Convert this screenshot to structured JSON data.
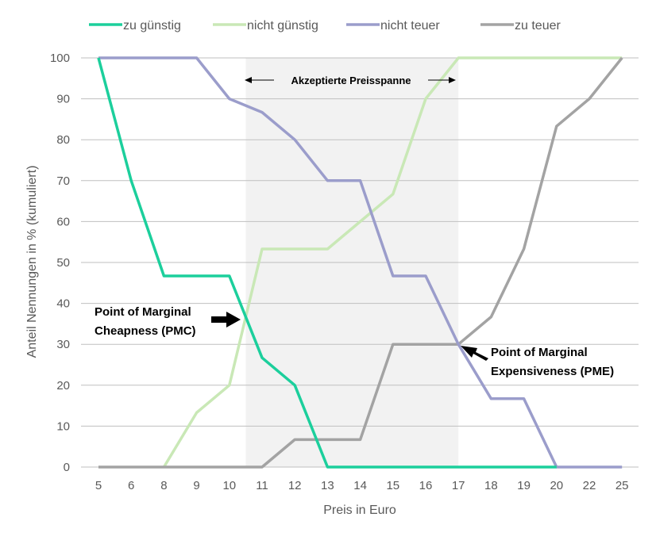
{
  "chart_data": {
    "type": "line",
    "categories": [
      "5",
      "6",
      "8",
      "9",
      "10",
      "11",
      "12",
      "13",
      "14",
      "15",
      "16",
      "17",
      "18",
      "19",
      "20",
      "22",
      "25"
    ],
    "xlabel": "Preis in Euro",
    "ylabel": "Anteil Nennungen in % (kumuliert)",
    "ylim": [
      0,
      100
    ],
    "yticks": [
      0,
      10,
      20,
      30,
      40,
      50,
      60,
      70,
      80,
      90,
      100
    ],
    "grid": true,
    "legend_position": "top",
    "series": [
      {
        "name": "zu günstig",
        "color": "#1ccf9c",
        "values": [
          100,
          70,
          46.7,
          46.7,
          46.7,
          26.7,
          20,
          0,
          0,
          0,
          0,
          0,
          0,
          0,
          0,
          null,
          null
        ]
      },
      {
        "name": "nicht günstig",
        "color": "#c9e8b6",
        "values": [
          null,
          null,
          0,
          13.3,
          20,
          53.3,
          53.3,
          53.3,
          60,
          66.7,
          90,
          100,
          100,
          100,
          100,
          100,
          100
        ]
      },
      {
        "name": "nicht teuer",
        "color": "#9b9dcb",
        "values": [
          100,
          100,
          100,
          100,
          90,
          86.7,
          80,
          70,
          70,
          46.7,
          46.7,
          30,
          16.7,
          16.7,
          0,
          0,
          0
        ]
      },
      {
        "name": "zu teuer",
        "color": "#a3a3a3",
        "values": [
          0,
          0,
          0,
          0,
          0,
          0,
          6.7,
          6.7,
          6.7,
          30,
          30,
          30,
          36.7,
          53.3,
          83.3,
          90,
          100
        ]
      }
    ],
    "band": {
      "label": "Akzeptierte Preisspanne",
      "from_category_index": 4.5,
      "to_category_index": 11
    },
    "annotations": [
      {
        "line1": "Point of Marginal",
        "line2": "Cheapness (PMC)",
        "x_index": 4.75,
        "y": 36.5
      },
      {
        "line1": "Point of Marginal",
        "line2": "Expensiveness (PME)",
        "x_index": 11,
        "y": 30
      }
    ]
  }
}
